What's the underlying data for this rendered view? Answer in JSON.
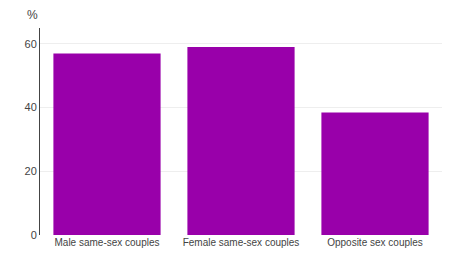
{
  "chart_data": {
    "type": "bar",
    "categories": [
      "Male same-sex couples",
      "Female same-sex couples",
      "Opposite sex couples"
    ],
    "values": [
      57.0,
      59.0,
      38.5
    ],
    "color": "#9900AA",
    "ylabel": "%",
    "ylim": [
      0,
      65
    ],
    "yticks": [
      0,
      20,
      40,
      60
    ],
    "grid": true
  }
}
